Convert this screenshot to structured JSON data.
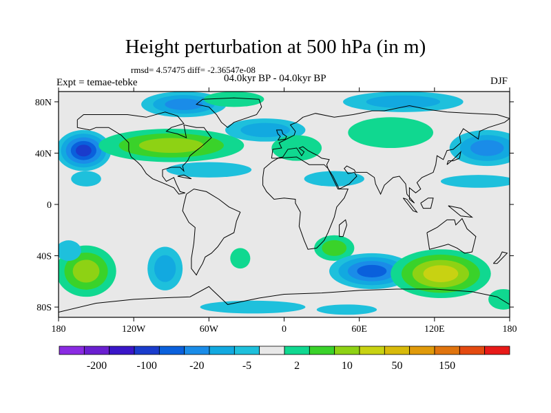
{
  "title": "Height perturbation at 500 hPa (in m)",
  "stats": "rmsd= 4.57475 diff= -2.36547e-08",
  "period": "04.0kyr BP - 04.0kyr BP",
  "experiment": "Expt = temae-tebke",
  "season": "DJF",
  "map": {
    "lon_ticks": [
      {
        "lon": -180,
        "label": "180"
      },
      {
        "lon": -120,
        "label": "120W"
      },
      {
        "lon": -60,
        "label": "60W"
      },
      {
        "lon": 0,
        "label": "0"
      },
      {
        "lon": 60,
        "label": "60E"
      },
      {
        "lon": 120,
        "label": "120E"
      },
      {
        "lon": 180,
        "label": "180"
      }
    ],
    "lat_ticks": [
      {
        "lat": 80,
        "label": "80N"
      },
      {
        "lat": 40,
        "label": "40N"
      },
      {
        "lat": 0,
        "label": "0"
      },
      {
        "lat": -40,
        "label": "40S"
      },
      {
        "lat": -80,
        "label": "80S"
      }
    ],
    "lat_range": [
      -88,
      88
    ],
    "lon_range": [
      -180,
      180
    ],
    "neutral_color": "#e8e8e8"
  },
  "colorbar": {
    "colors": [
      "#8a2be2",
      "#6a1fd0",
      "#3a16c8",
      "#1a3ccc",
      "#0a60dc",
      "#1a8ce8",
      "#12a9e0",
      "#1ec0dc",
      "#e8e8e8",
      "#10d890",
      "#3ad22a",
      "#8ed214",
      "#c8d212",
      "#d8ba0a",
      "#e09a0a",
      "#e0740e",
      "#e44a10",
      "#e81a18"
    ],
    "labels": [
      {
        "index": 1,
        "text": "-200"
      },
      {
        "index": 3,
        "text": "-100"
      },
      {
        "index": 5,
        "text": "-20"
      },
      {
        "index": 7,
        "text": "-5"
      },
      {
        "index": 9,
        "text": "2"
      },
      {
        "index": 11,
        "text": "10"
      },
      {
        "index": 13,
        "text": "50"
      },
      {
        "index": 15,
        "text": "150"
      }
    ]
  },
  "anomalies": [
    {
      "lon": -160,
      "lat": 42,
      "rx": 22,
      "ry": 16,
      "levels": [
        "#1ec0dc",
        "#12a9e0",
        "#1a8ce8",
        "#0a60dc",
        "#1a3ccc"
      ]
    },
    {
      "lon": -158,
      "lat": 20,
      "rx": 12,
      "ry": 6,
      "levels": [
        "#1ec0dc"
      ]
    },
    {
      "lon": -90,
      "lat": 46,
      "rx": 58,
      "ry": 13,
      "levels": [
        "#10d890",
        "#3ad22a",
        "#8ed214"
      ]
    },
    {
      "lon": -80,
      "lat": 78,
      "rx": 34,
      "ry": 10,
      "levels": [
        "#1ec0dc",
        "#12a9e0",
        "#1a8ce8"
      ]
    },
    {
      "lon": -40,
      "lat": 82,
      "rx": 24,
      "ry": 6,
      "levels": [
        "#10d890"
      ]
    },
    {
      "lon": -60,
      "lat": 27,
      "rx": 34,
      "ry": 6,
      "levels": [
        "#1ec0dc"
      ]
    },
    {
      "lon": -15,
      "lat": 58,
      "rx": 32,
      "ry": 9,
      "levels": [
        "#1ec0dc",
        "#12a9e0"
      ]
    },
    {
      "lon": 10,
      "lat": 44,
      "rx": 20,
      "ry": 10,
      "levels": [
        "#10d890"
      ]
    },
    {
      "lon": 85,
      "lat": 56,
      "rx": 34,
      "ry": 12,
      "levels": [
        "#10d890"
      ]
    },
    {
      "lon": 95,
      "lat": 80,
      "rx": 48,
      "ry": 8,
      "levels": [
        "#1ec0dc",
        "#12a9e0"
      ]
    },
    {
      "lon": 162,
      "lat": 44,
      "rx": 30,
      "ry": 14,
      "levels": [
        "#1ec0dc",
        "#12a9e0",
        "#1a8ce8"
      ]
    },
    {
      "lon": 155,
      "lat": 18,
      "rx": 30,
      "ry": 5,
      "levels": [
        "#1ec0dc"
      ]
    },
    {
      "lon": 40,
      "lat": 20,
      "rx": 24,
      "ry": 6,
      "levels": [
        "#1ec0dc"
      ]
    },
    {
      "lon": -158,
      "lat": -52,
      "rx": 24,
      "ry": 20,
      "levels": [
        "#10d890",
        "#3ad22a",
        "#8ed214"
      ]
    },
    {
      "lon": -172,
      "lat": -36,
      "rx": 10,
      "ry": 8,
      "levels": [
        "#1ec0dc"
      ]
    },
    {
      "lon": -95,
      "lat": -50,
      "rx": 14,
      "ry": 17,
      "levels": [
        "#1ec0dc",
        "#12a9e0"
      ]
    },
    {
      "lon": -35,
      "lat": -42,
      "rx": 8,
      "ry": 8,
      "levels": [
        "#10d890"
      ]
    },
    {
      "lon": 40,
      "lat": -34,
      "rx": 16,
      "ry": 10,
      "levels": [
        "#10d890",
        "#3ad22a"
      ]
    },
    {
      "lon": 70,
      "lat": -52,
      "rx": 34,
      "ry": 14,
      "levels": [
        "#1ec0dc",
        "#12a9e0",
        "#1a8ce8",
        "#0a60dc"
      ]
    },
    {
      "lon": 125,
      "lat": -54,
      "rx": 40,
      "ry": 19,
      "levels": [
        "#10d890",
        "#3ad22a",
        "#8ed214",
        "#c8d212"
      ]
    },
    {
      "lon": 175,
      "lat": -74,
      "rx": 12,
      "ry": 8,
      "levels": [
        "#10d890"
      ]
    },
    {
      "lon": -25,
      "lat": -80,
      "rx": 42,
      "ry": 5,
      "levels": [
        "#1ec0dc"
      ]
    },
    {
      "lon": 50,
      "lat": -82,
      "rx": 24,
      "ry": 4,
      "levels": [
        "#1ec0dc"
      ]
    }
  ]
}
